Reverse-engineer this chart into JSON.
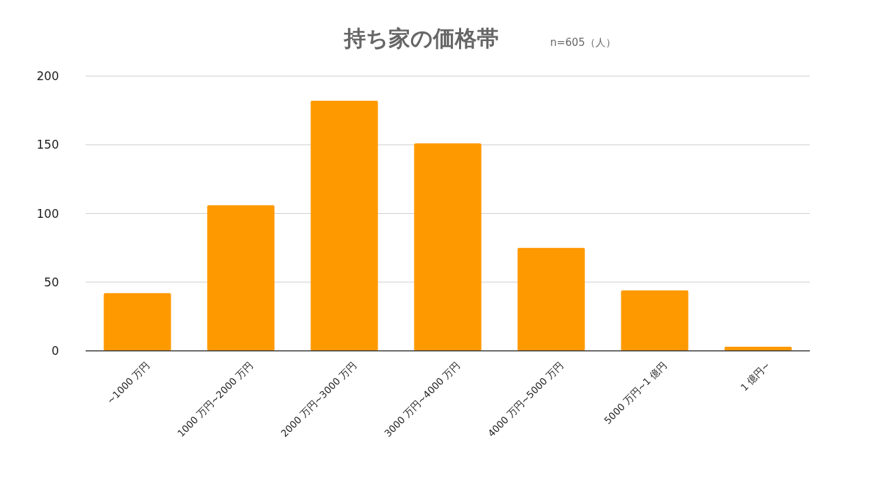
{
  "chart_data": {
    "type": "bar",
    "title": "持ち家の価格帯",
    "subtitle": "n=605（人）",
    "categories": [
      "~1000 万円",
      "1000 万円~2000 万円",
      "2000 万円~3000 万円",
      "3000 万円~4000 万円",
      "4000 万円~5000 万円",
      "5000 万円~1 億円",
      "1 億円~"
    ],
    "values": [
      42,
      106,
      182,
      151,
      75,
      44,
      3
    ],
    "color": "#ff9900",
    "ylim": [
      0,
      200
    ],
    "yticks": [
      0,
      50,
      100,
      150,
      200
    ],
    "grid": "y"
  }
}
